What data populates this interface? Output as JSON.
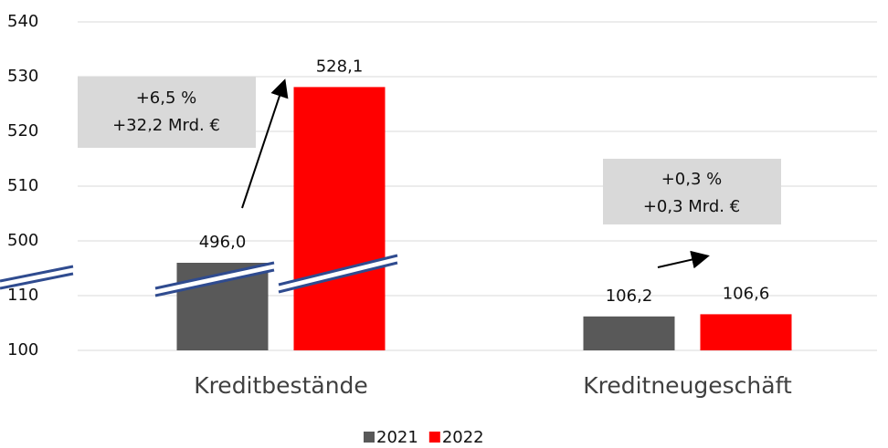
{
  "chart_data": {
    "type": "bar",
    "categories": [
      "Kreditbestände",
      "Kreditneugeschäft"
    ],
    "series": [
      {
        "name": "2021",
        "color": "#595959",
        "values": [
          496.0,
          106.2
        ],
        "value_labels": [
          "496,0",
          "106,2"
        ]
      },
      {
        "name": "2022",
        "color": "#ff0000",
        "values": [
          528.1,
          106.6
        ],
        "value_labels": [
          "528,1",
          "106,6"
        ]
      }
    ],
    "ylim": [
      100,
      540
    ],
    "axis_break": [
      115,
      495
    ],
    "yticks": [
      100,
      110,
      500,
      510,
      520,
      530,
      540
    ],
    "grid": true,
    "legend": "bottom",
    "annotations": [
      {
        "lines": [
          "+6,5 %",
          "+32,2 Mrd. €"
        ]
      },
      {
        "lines": [
          "+0,3 %",
          "+0,3 Mrd. €"
        ]
      }
    ]
  }
}
